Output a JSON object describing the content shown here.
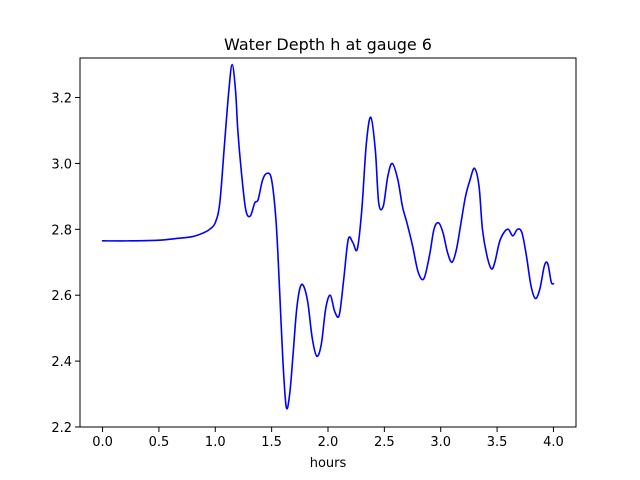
{
  "chart_data": {
    "type": "line",
    "title": "Water Depth h at gauge 6",
    "xlabel": "hours",
    "ylabel": "",
    "xlim": [
      -0.2,
      4.2
    ],
    "ylim": [
      2.2,
      3.32
    ],
    "xticks": [
      0.0,
      0.5,
      1.0,
      1.5,
      2.0,
      2.5,
      3.0,
      3.5,
      4.0
    ],
    "xtick_labels": [
      "0.0",
      "0.5",
      "1.0",
      "1.5",
      "2.0",
      "2.5",
      "3.0",
      "3.5",
      "4.0"
    ],
    "yticks": [
      2.2,
      2.4,
      2.6,
      2.8,
      3.0,
      3.2
    ],
    "ytick_labels": [
      "2.2",
      "2.4",
      "2.6",
      "2.8",
      "3.0",
      "3.2"
    ],
    "grid": false,
    "legend": "none",
    "series": [
      {
        "color": "#0000ff",
        "x": [
          0.0,
          0.25,
          0.5,
          0.65,
          0.8,
          0.9,
          0.95,
          1.0,
          1.04,
          1.08,
          1.12,
          1.15,
          1.18,
          1.2,
          1.23,
          1.27,
          1.31,
          1.35,
          1.38,
          1.42,
          1.46,
          1.5,
          1.54,
          1.57,
          1.6,
          1.63,
          1.66,
          1.69,
          1.72,
          1.75,
          1.78,
          1.82,
          1.86,
          1.9,
          1.94,
          1.98,
          2.02,
          2.06,
          2.1,
          2.14,
          2.18,
          2.22,
          2.26,
          2.3,
          2.34,
          2.38,
          2.42,
          2.45,
          2.49,
          2.53,
          2.57,
          2.62,
          2.66,
          2.7,
          2.75,
          2.8,
          2.85,
          2.9,
          2.94,
          2.98,
          3.02,
          3.06,
          3.1,
          3.14,
          3.18,
          3.22,
          3.26,
          3.3,
          3.34,
          3.37,
          3.41,
          3.45,
          3.48,
          3.52,
          3.56,
          3.6,
          3.64,
          3.68,
          3.72,
          3.76,
          3.8,
          3.84,
          3.88,
          3.92,
          3.95,
          3.98,
          4.0
        ],
        "y": [
          2.765,
          2.765,
          2.767,
          2.772,
          2.778,
          2.79,
          2.8,
          2.82,
          2.88,
          3.05,
          3.22,
          3.3,
          3.22,
          3.1,
          2.98,
          2.86,
          2.84,
          2.88,
          2.89,
          2.95,
          2.97,
          2.95,
          2.82,
          2.62,
          2.4,
          2.26,
          2.3,
          2.42,
          2.55,
          2.62,
          2.63,
          2.58,
          2.47,
          2.415,
          2.45,
          2.56,
          2.6,
          2.55,
          2.54,
          2.65,
          2.77,
          2.76,
          2.74,
          2.86,
          3.06,
          3.14,
          3.04,
          2.88,
          2.87,
          2.96,
          3.0,
          2.95,
          2.87,
          2.82,
          2.75,
          2.67,
          2.65,
          2.72,
          2.8,
          2.82,
          2.79,
          2.73,
          2.7,
          2.74,
          2.82,
          2.9,
          2.95,
          2.985,
          2.93,
          2.8,
          2.72,
          2.68,
          2.7,
          2.76,
          2.79,
          2.8,
          2.78,
          2.8,
          2.79,
          2.72,
          2.63,
          2.59,
          2.62,
          2.69,
          2.695,
          2.64,
          2.635
        ]
      }
    ]
  }
}
